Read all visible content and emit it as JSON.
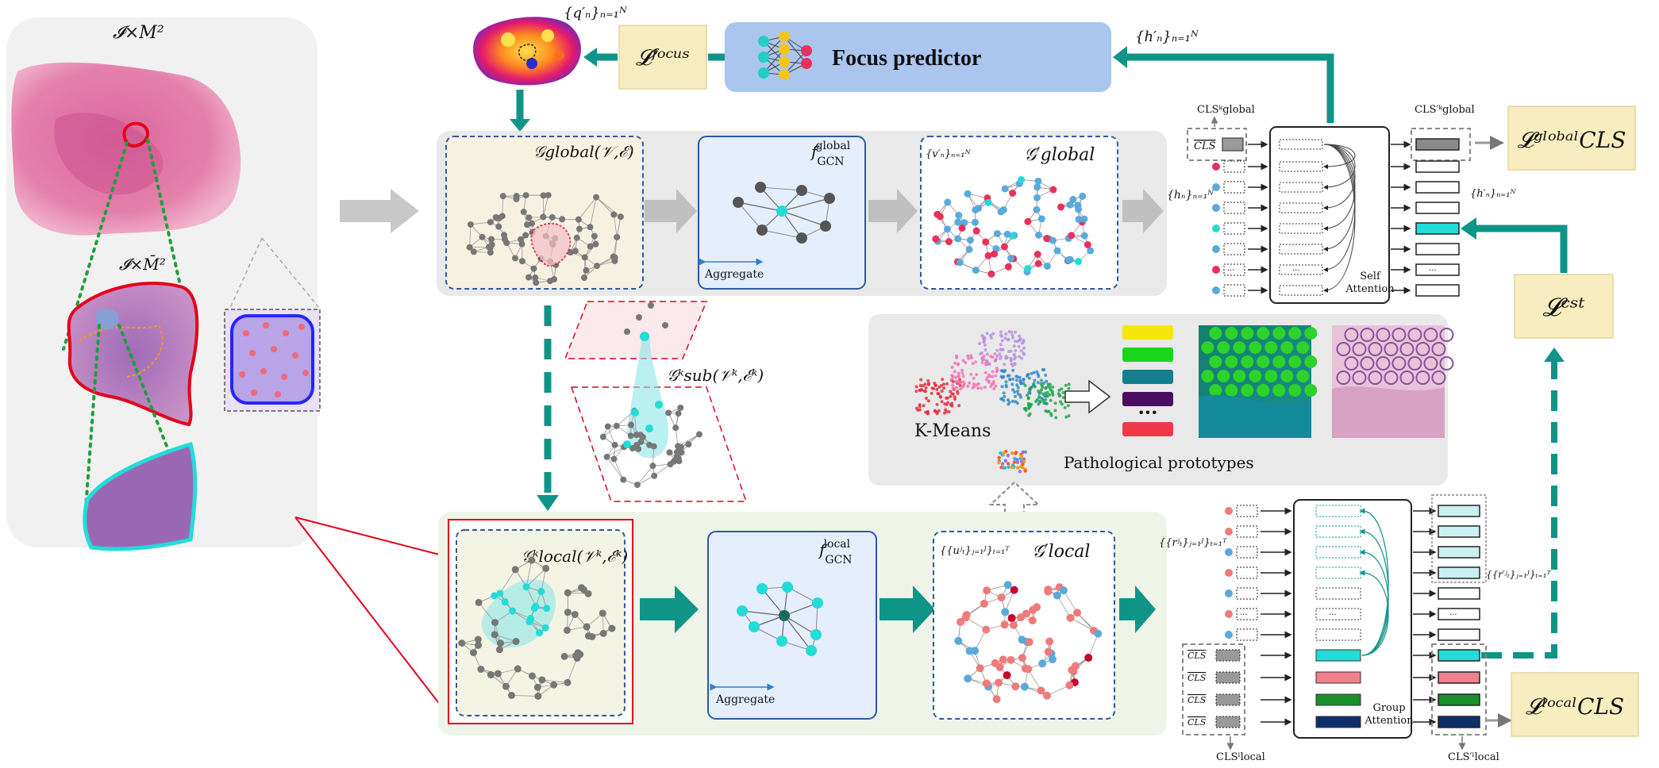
{
  "labels": {
    "wsi_high": "𝓘×M²",
    "wsi_low": "𝓘×M̄²",
    "q_n": "{q′ₙ}ₙ₌₁ᴺ",
    "l_focus": "𝓛ᶠᵒᶜᵘˢ",
    "focus_predictor": "Focus predictor",
    "h_prime_top": "{h′ₙ}ₙ₌₁ᴺ",
    "g_global": "𝒢global(𝒱,ℰ)",
    "f_gcn_global": "f GCN global",
    "aggregate_1": "Aggregate",
    "v_n": "{v′ₙ}ₙ₌₁ᴺ",
    "g_prime_global": "𝒢′global",
    "h_n": "{hₙ}ₙ₌₁ᴺ",
    "cls_global_in": "CLSᵏglobal",
    "cls_token": "CLS",
    "cls_global_out": "CLS′ᵏglobal",
    "l_cls_global": "𝓛ᵍˡᵒᵇᵃˡCLS",
    "h_prime_side": "{h′ₙ}ₙ₌₁ᴺ",
    "self_attention": "Self\nAttention",
    "l_cst": "𝓛ᶜˢᵗ",
    "g_sub": "𝒢ᵏsub(𝒱ᵏ,ℰᵏ)",
    "k_means": "K-Means",
    "pathological_prototypes": "Pathological prototypes",
    "g_local": "𝒢ᵏlocal(𝒱ᵏ,ℰᵏ)",
    "f_gcn_local": "f GCN local",
    "aggregate_2": "Aggregate",
    "u_jt": "{{uʲₜ}ⱼ₌₁ᴶ}ₜ₌₁ᵀ",
    "g_prime_local": "𝒢′local",
    "r_jt": "{{rʲₜ}ⱼ₌₁ᴶ}ₜ₌₁ᵀ",
    "r_prime_jt": "{{r′ʲₜ}ⱼ₌₁ᴶ}ₜ₌₁ᵀ",
    "group_attention": "Group\nAttention",
    "cls_local_in": "CLSˡlocal",
    "cls_local_out": "CLS′ˡlocal",
    "l_cls_local": "𝓛ˡᵒᶜᵃˡCLS",
    "ellipsis": "···"
  },
  "colors": {
    "teal": "#0f9488",
    "gray_arrow": "#c0c0c0",
    "yellow_box": "#f8edc0",
    "blue_box": "#aac6ef",
    "dashed_blue": "#2d5aa0",
    "red_node": "#e8315a",
    "blue_node": "#5aa9dc",
    "gray_node": "#777777",
    "cyan": "#22dcd8",
    "pink_node": "#f07a7a"
  },
  "prototype_colors": [
    "#f5e60c",
    "#19d61c",
    "#137f8f",
    "#4a0c60",
    "#f1374a"
  ]
}
